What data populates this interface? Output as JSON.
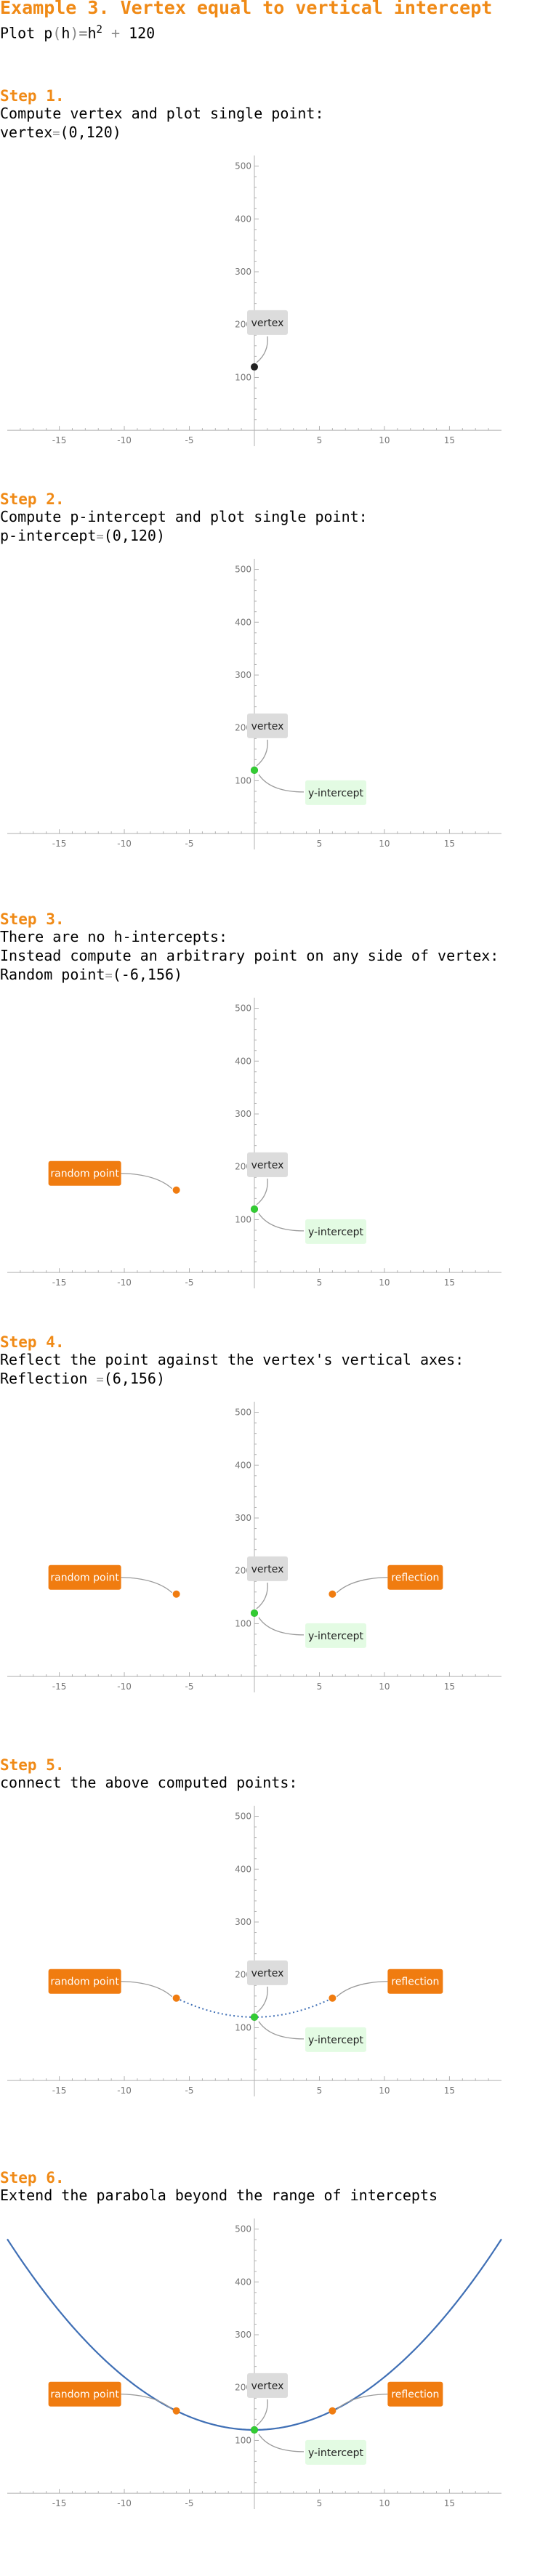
{
  "title": "Example 3. Vertex equal to vertical intercept",
  "formula": {
    "prefix": "Plot ",
    "func": "p",
    "var": "h",
    "eq": "=",
    "base": "h",
    "exp": "2",
    "plus": "+",
    "const": "120"
  },
  "axis": {
    "x_ticks": [
      "-15",
      "-10",
      "-5",
      "5",
      "10",
      "15"
    ],
    "y_ticks": [
      "100",
      "200",
      "300",
      "400",
      "500"
    ]
  },
  "steps": [
    {
      "label": "Step 1.",
      "lines": [
        {
          "text": "Compute vertex and plot single point:"
        },
        {
          "name": "vertex",
          "eq": "=",
          "value": "(0,120)"
        }
      ]
    },
    {
      "label": "Step 2.",
      "lines": [
        {
          "text": "Compute p-intercept and plot single point:"
        },
        {
          "name": "p-intercept",
          "eq": "=",
          "value": "(0,120)"
        }
      ]
    },
    {
      "label": "Step 3.",
      "lines": [
        {
          "text": "There are no h-intercepts:"
        },
        {
          "text": "Instead compute an arbitrary point on any side of vertex:"
        },
        {
          "name": "Random point",
          "eq": "=",
          "value": "(-6,156)"
        }
      ]
    },
    {
      "label": "Step 4.",
      "lines": [
        {
          "text": "Reflect the point against the vertex's vertical axes:"
        },
        {
          "name": "Reflection ",
          "eq": "=",
          "value": "(6,156)"
        }
      ]
    },
    {
      "label": "Step 5.",
      "lines": [
        {
          "text": "connect the above computed points:"
        }
      ]
    },
    {
      "label": "Step 6.",
      "lines": [
        {
          "text": "Extend the parabola beyond the range of intercepts"
        }
      ]
    }
  ],
  "callouts": {
    "vertex": "vertex",
    "y_intercept": "y-intercept",
    "random_point": "random point",
    "reflection": "reflection"
  },
  "colors": {
    "accent": "#f08a16",
    "vertex_point": "#222222",
    "intercept_point": "#33cc33",
    "arbitrary_point": "#f07c10",
    "curve": "#3f6fb5",
    "callout_gray": "#dcdcdc",
    "callout_green": "#e3fbe3",
    "callout_orange": "#f07c10"
  },
  "chart_data": [
    {
      "type": "scatter",
      "xlim": [
        -19,
        19
      ],
      "ylim": [
        -30,
        520
      ],
      "points": [
        {
          "x": 0,
          "y": 120,
          "label": "vertex"
        }
      ]
    },
    {
      "type": "scatter",
      "xlim": [
        -19,
        19
      ],
      "ylim": [
        -30,
        520
      ],
      "points": [
        {
          "x": 0,
          "y": 120,
          "label": "vertex"
        },
        {
          "x": 0,
          "y": 120,
          "label": "y-intercept"
        }
      ]
    },
    {
      "type": "scatter",
      "xlim": [
        -19,
        19
      ],
      "ylim": [
        -30,
        520
      ],
      "points": [
        {
          "x": 0,
          "y": 120,
          "label": "vertex"
        },
        {
          "x": 0,
          "y": 120,
          "label": "y-intercept"
        },
        {
          "x": -6,
          "y": 156,
          "label": "random point"
        }
      ]
    },
    {
      "type": "scatter",
      "xlim": [
        -19,
        19
      ],
      "ylim": [
        -30,
        520
      ],
      "points": [
        {
          "x": 0,
          "y": 120,
          "label": "vertex"
        },
        {
          "x": 0,
          "y": 120,
          "label": "y-intercept"
        },
        {
          "x": -6,
          "y": 156,
          "label": "random point"
        },
        {
          "x": 6,
          "y": 156,
          "label": "reflection"
        }
      ]
    },
    {
      "type": "line",
      "xlim": [
        -19,
        19
      ],
      "ylim": [
        -30,
        520
      ],
      "curve": "dotted",
      "curve_x_range": [
        -6,
        6
      ],
      "points": [
        {
          "x": 0,
          "y": 120,
          "label": "vertex"
        },
        {
          "x": 0,
          "y": 120,
          "label": "y-intercept"
        },
        {
          "x": -6,
          "y": 156,
          "label": "random point"
        },
        {
          "x": 6,
          "y": 156,
          "label": "reflection"
        }
      ]
    },
    {
      "type": "line",
      "xlim": [
        -19,
        19
      ],
      "ylim": [
        -30,
        520
      ],
      "curve": "solid",
      "curve_x_range": [
        -19,
        19
      ],
      "points": [
        {
          "x": 0,
          "y": 120,
          "label": "vertex"
        },
        {
          "x": 0,
          "y": 120,
          "label": "y-intercept"
        },
        {
          "x": -6,
          "y": 156,
          "label": "random point"
        },
        {
          "x": 6,
          "y": 156,
          "label": "reflection"
        }
      ]
    }
  ]
}
